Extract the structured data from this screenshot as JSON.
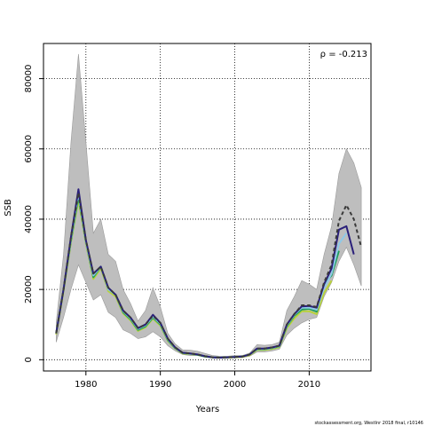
{
  "chart_data": {
    "type": "line",
    "xlabel": "Years",
    "ylabel": "SSB",
    "xlim": [
      1974.3,
      2018.3
    ],
    "ylim": [
      -3200,
      90000
    ],
    "xticks": [
      1980,
      1990,
      2000,
      2010
    ],
    "yticks": [
      0,
      20000,
      40000,
      60000,
      80000
    ],
    "grid": "dotted",
    "annotation": "ρ = -0.213",
    "credit": "stockassessment.org, Westlnr 2018 final, r10146",
    "band": {
      "x": [
        1976,
        1977,
        1978,
        1979,
        1980,
        1981,
        1982,
        1983,
        1984,
        1985,
        1986,
        1987,
        1988,
        1989,
        1990,
        1991,
        1992,
        1993,
        1994,
        1995,
        1996,
        1997,
        1998,
        1999,
        2000,
        2001,
        2002,
        2003,
        2004,
        2005,
        2006,
        2007,
        2008,
        2009,
        2010,
        2011,
        2012,
        2013,
        2014,
        2015,
        2016,
        2017
      ],
      "lower": [
        5000,
        12000,
        20000,
        27000,
        22000,
        17000,
        18500,
        13500,
        12000,
        8500,
        7500,
        6000,
        6500,
        8000,
        6500,
        4000,
        2500,
        1500,
        1200,
        1200,
        800,
        600,
        500,
        500,
        600,
        600,
        1000,
        2200,
        2200,
        2500,
        3000,
        7000,
        9000,
        10500,
        11500,
        12000,
        18000,
        22000,
        28000,
        32000,
        27000,
        21000
      ],
      "upper": [
        10500,
        30000,
        62000,
        87000,
        62000,
        36000,
        40000,
        30000,
        28000,
        20000,
        16000,
        11000,
        14000,
        20500,
        15000,
        7500,
        4500,
        2800,
        2700,
        2400,
        1800,
        1200,
        1000,
        1000,
        1200,
        1200,
        1900,
        4300,
        4100,
        4300,
        5000,
        14000,
        18000,
        22500,
        21500,
        20000,
        30000,
        38000,
        53000,
        60000,
        56000,
        49000
      ]
    },
    "series": [
      {
        "color": "#3a3a3a",
        "style": "dashed",
        "values": [
          7500,
          20000,
          35000,
          47500,
          34000,
          24500,
          26500,
          20500,
          18500,
          14000,
          12000,
          9000,
          10000,
          12500,
          10500,
          6000,
          3500,
          2000,
          1800,
          1500,
          1000,
          700,
          600,
          700,
          800,
          900,
          1500,
          3200,
          3200,
          3500,
          4000,
          10000,
          13000,
          15500,
          15500,
          15000,
          22000,
          27000,
          39500,
          44000,
          40000,
          32000
        ]
      },
      {
        "color": "#2a1f7a",
        "style": "solid",
        "values": [
          7500,
          20000,
          35000,
          48500,
          34000,
          24500,
          26500,
          20500,
          18500,
          14000,
          12000,
          9000,
          10000,
          12800,
          10500,
          6000,
          3500,
          2000,
          1800,
          1500,
          1000,
          700,
          600,
          700,
          800,
          900,
          1500,
          3200,
          3200,
          3500,
          4000,
          10000,
          13000,
          15200,
          15300,
          14800,
          21500,
          26000,
          37000,
          38000,
          30000
        ]
      },
      {
        "color": "#8ec9e8",
        "style": "solid",
        "values": [
          7500,
          20000,
          34500,
          47500,
          33500,
          24000,
          26500,
          20000,
          18500,
          13800,
          11800,
          8800,
          9800,
          12300,
          10300,
          5800,
          3400,
          2000,
          1700,
          1500,
          1000,
          700,
          600,
          700,
          800,
          900,
          1500,
          3100,
          3100,
          3400,
          3900,
          9800,
          12800,
          14800,
          14800,
          14200,
          20500,
          24500,
          33000,
          36000
        ]
      },
      {
        "color": "#1f9e5a",
        "style": "solid",
        "values": [
          7500,
          20000,
          34000,
          46500,
          33500,
          23500,
          26500,
          20000,
          18500,
          13500,
          11500,
          8500,
          9500,
          12000,
          10000,
          5600,
          3300,
          1900,
          1700,
          1400,
          900,
          700,
          600,
          700,
          800,
          900,
          1500,
          3000,
          3000,
          3300,
          3800,
          9500,
          12500,
          14300,
          14500,
          13700,
          21500,
          24000,
          31000
        ]
      },
      {
        "color": "#b9d23a",
        "style": "solid",
        "values": [
          7200,
          19500,
          33500,
          45500,
          33000,
          23000,
          26000,
          19500,
          18000,
          13200,
          11200,
          8200,
          9200,
          11700,
          9700,
          5400,
          3200,
          1800,
          1600,
          1400,
          900,
          700,
          600,
          600,
          700,
          800,
          1300,
          2800,
          2800,
          3100,
          3600,
          9000,
          11800,
          13800,
          13800,
          13000,
          19000,
          22500
        ]
      }
    ]
  }
}
